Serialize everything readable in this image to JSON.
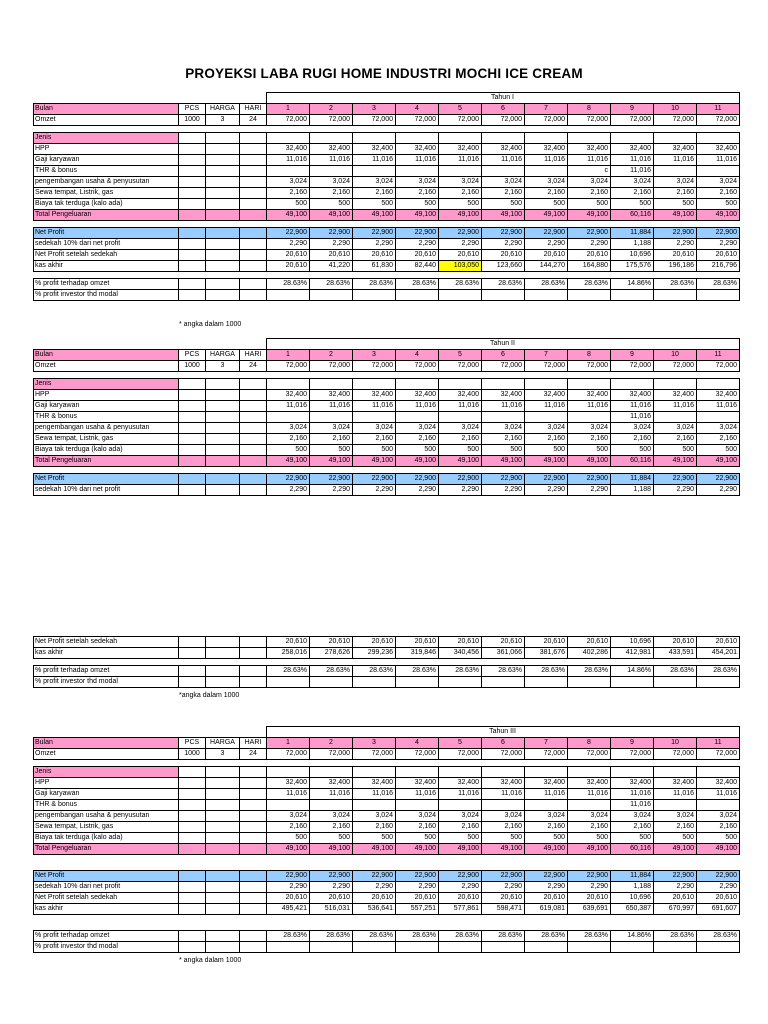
{
  "title": "PROYEKSI LABA RUGI HOME INDUSTRI MOCHI ICE CREAM",
  "colors": {
    "header_pink": "#FF99CC",
    "profit_blue": "#99CCFF",
    "highlight_yellow": "#FFFF00",
    "grid_border": "#000000",
    "page_background": "#FFFFFF"
  },
  "column_headers": {
    "bulan": "Bulan",
    "pcs": "PCS",
    "harga": "HARGA",
    "hari": "HARI"
  },
  "series": {
    "months": [
      "1",
      "2",
      "3",
      "4",
      "5",
      "6",
      "7",
      "8",
      "9",
      "10",
      "11"
    ],
    "omzet": [
      "72,000",
      "72,000",
      "72,000",
      "72,000",
      "72,000",
      "72,000",
      "72,000",
      "72,000",
      "72,000",
      "72,000",
      "72,000"
    ],
    "hpp": [
      "32,400",
      "32,400",
      "32,400",
      "32,400",
      "32,400",
      "32,400",
      "32,400",
      "32,400",
      "32,400",
      "32,400",
      "32,400"
    ],
    "gaji": [
      "11,016",
      "11,016",
      "11,016",
      "11,016",
      "11,016",
      "11,016",
      "11,016",
      "11,016",
      "11,016",
      "11,016",
      "11,016"
    ],
    "thr_y1": [
      "",
      "",
      "",
      "",
      "",
      "",
      "",
      "c",
      "11,016",
      "",
      ""
    ],
    "thr": [
      "",
      "",
      "",
      "",
      "",
      "",
      "",
      "",
      "11,016",
      "",
      ""
    ],
    "pengembangan": [
      "3,024",
      "3,024",
      "3,024",
      "3,024",
      "3,024",
      "3,024",
      "3,024",
      "3,024",
      "3,024",
      "3,024",
      "3,024"
    ],
    "sewa": [
      "2,160",
      "2,160",
      "2,160",
      "2,160",
      "2,160",
      "2,160",
      "2,160",
      "2,160",
      "2,160",
      "2,160",
      "2,160"
    ],
    "biaya": [
      "500",
      "500",
      "500",
      "500",
      "500",
      "500",
      "500",
      "500",
      "500",
      "500",
      "500"
    ],
    "total": [
      "49,100",
      "49,100",
      "49,100",
      "49,100",
      "49,100",
      "49,100",
      "49,100",
      "49,100",
      "60,116",
      "49,100",
      "49,100"
    ],
    "net_profit": [
      "22,900",
      "22,900",
      "22,900",
      "22,900",
      "22,900",
      "22,900",
      "22,900",
      "22,900",
      "11,884",
      "22,900",
      "22,900"
    ],
    "sedekah": [
      "2,290",
      "2,290",
      "2,290",
      "2,290",
      "2,290",
      "2,290",
      "2,290",
      "2,290",
      "1,188",
      "2,290",
      "2,290"
    ],
    "net_after": [
      "20,610",
      "20,610",
      "20,610",
      "20,610",
      "20,610",
      "20,610",
      "20,610",
      "20,610",
      "10,696",
      "20,610",
      "20,610"
    ],
    "kas_y1": [
      "20,610",
      "41,220",
      "61,830",
      "82,440",
      "103,050",
      "123,660",
      "144,270",
      "164,880",
      "175,576",
      "196,186",
      "216,796"
    ],
    "kas_y2": [
      "258,016",
      "278,626",
      "299,236",
      "319,846",
      "340,456",
      "361,066",
      "381,676",
      "402,286",
      "412,981",
      "433,591",
      "454,201"
    ],
    "kas_y3": [
      "495,421",
      "516,031",
      "536,641",
      "557,251",
      "577,861",
      "598,471",
      "619,081",
      "639,691",
      "650,387",
      "670,997",
      "691,607"
    ],
    "pct": [
      "28.63%",
      "28.63%",
      "28.63%",
      "28.63%",
      "28.63%",
      "28.63%",
      "28.63%",
      "28.63%",
      "14.86%",
      "28.63%",
      "28.63%"
    ],
    "empty": [
      "",
      "",
      "",
      "",
      "",
      "",
      "",
      "",
      "",
      "",
      ""
    ]
  },
  "segments": [
    {
      "type": "table",
      "name": "tahun1-header-table",
      "rows": [
        {
          "kind": "year",
          "name": "year-row",
          "text": "Tahun I"
        },
        {
          "kind": "row",
          "name": "bulan-row",
          "label": "Bulan",
          "labelBg": "pink",
          "small": [
            "PCS",
            "HARGA",
            "HARI"
          ],
          "valRef": "months",
          "valBg": "pink",
          "align": "center"
        },
        {
          "kind": "row",
          "name": "omzet-row",
          "label": "Omzet",
          "small": [
            "1000",
            "3",
            "24"
          ],
          "valRef": "omzet"
        }
      ]
    },
    {
      "type": "gap",
      "size": "s"
    },
    {
      "type": "table",
      "name": "tahun1-expenses-table",
      "rows": [
        {
          "kind": "row",
          "name": "jenis-row",
          "label": "Jenis",
          "labelBg": "pink",
          "valRef": "empty"
        },
        {
          "kind": "row",
          "name": "hpp-row",
          "label": "HPP",
          "valRef": "hpp"
        },
        {
          "kind": "row",
          "name": "gaji-row",
          "label": "Gaji karyawan",
          "valRef": "gaji"
        },
        {
          "kind": "row",
          "name": "thr-row",
          "label": "THR & bonus",
          "valRef": "thr_y1"
        },
        {
          "kind": "row",
          "name": "pengembangan-row",
          "label": "pengembangan usaha & penyusutan",
          "valRef": "pengembangan"
        },
        {
          "kind": "row",
          "name": "sewa-row",
          "label": "Sewa tempat, Listrik, gas",
          "valRef": "sewa"
        },
        {
          "kind": "row",
          "name": "biaya-row",
          "label": "Biaya tak terduga (kalo ada)",
          "valRef": "biaya"
        },
        {
          "kind": "row",
          "name": "total-row",
          "label": "Total Pengeluaran",
          "rowBg": "pink",
          "valRef": "total"
        }
      ]
    },
    {
      "type": "gap",
      "size": "s"
    },
    {
      "type": "table",
      "name": "tahun1-profit-table",
      "rows": [
        {
          "kind": "row",
          "name": "net-profit-row",
          "label": "Net Profit",
          "rowBg": "blue",
          "valRef": "net_profit"
        },
        {
          "kind": "row",
          "name": "sedekah-row",
          "label": "sedekah 10% dari net profit",
          "valRef": "sedekah"
        },
        {
          "kind": "row",
          "name": "net-after-row",
          "label": "Net Profit setelah sedekah",
          "valRef": "net_after"
        },
        {
          "kind": "row",
          "name": "kas-akhir-row",
          "label": "kas akhir",
          "valRef": "kas_y1",
          "highlight": 4
        }
      ]
    },
    {
      "type": "gap",
      "size": "s"
    },
    {
      "type": "table",
      "name": "tahun1-percent-table",
      "rows": [
        {
          "kind": "row",
          "name": "pct-omzet-row",
          "label": "% profit terhadap omzet",
          "valRef": "pct"
        },
        {
          "kind": "row",
          "name": "pct-investor-row",
          "label": "% profit investor thd modal",
          "valRef": "empty"
        }
      ]
    },
    {
      "type": "gap",
      "size": "m"
    },
    {
      "type": "note",
      "text": "* angka dalam 1000"
    },
    {
      "type": "gap",
      "size": "b"
    },
    {
      "type": "table",
      "name": "tahun2-header-table",
      "rows": [
        {
          "kind": "year",
          "name": "year-row",
          "text": "Tahun II"
        },
        {
          "kind": "row",
          "name": "bulan-row",
          "label": "Bulan",
          "labelBg": "pink",
          "small": [
            "PCS",
            "HARGA",
            "HARI"
          ],
          "valRef": "months",
          "valBg": "pink",
          "align": "center"
        },
        {
          "kind": "row",
          "name": "omzet-row",
          "label": "Omzet",
          "small": [
            "1000",
            "3",
            "24"
          ],
          "valRef": "omzet"
        }
      ]
    },
    {
      "type": "gap",
      "size": "s"
    },
    {
      "type": "table",
      "name": "tahun2-expenses-table",
      "rows": [
        {
          "kind": "row",
          "name": "jenis-row",
          "label": "Jenis",
          "labelBg": "pink",
          "valRef": "empty"
        },
        {
          "kind": "row",
          "name": "hpp-row",
          "label": "HPP",
          "valRef": "hpp"
        },
        {
          "kind": "row",
          "name": "gaji-row",
          "label": "Gaji karyawan",
          "valRef": "gaji"
        },
        {
          "kind": "row",
          "name": "thr-row",
          "label": "THR & bonus",
          "valRef": "thr"
        },
        {
          "kind": "row",
          "name": "pengembangan-row",
          "label": "pengembangan usaha & penyusutan",
          "valRef": "pengembangan"
        },
        {
          "kind": "row",
          "name": "sewa-row",
          "label": "Sewa tempat, Listrik, gas",
          "valRef": "sewa"
        },
        {
          "kind": "row",
          "name": "biaya-row",
          "label": "Biaya tak terduga (kalo ada)",
          "valRef": "biaya"
        },
        {
          "kind": "row",
          "name": "total-row",
          "label": "Total Pengeluaran",
          "rowBg": "pink",
          "valRef": "total"
        }
      ]
    },
    {
      "type": "gap",
      "size": "s"
    },
    {
      "type": "table",
      "name": "tahun2-profit-table",
      "rows": [
        {
          "kind": "row",
          "name": "net-profit-row",
          "label": "Net Profit",
          "rowBg": "blue",
          "valRef": "net_profit"
        },
        {
          "kind": "row",
          "name": "sedekah-row",
          "label": "sedekah 10% dari net profit",
          "valRef": "sedekah"
        }
      ]
    },
    {
      "type": "gap",
      "size": "l"
    },
    {
      "type": "table",
      "name": "tahun2-profit-continued-table",
      "rows": [
        {
          "kind": "row",
          "name": "net-after-row",
          "label": "Net Profit setelah sedekah",
          "valRef": "net_after"
        },
        {
          "kind": "row",
          "name": "kas-akhir-row",
          "label": "kas akhir",
          "valRef": "kas_y2"
        }
      ]
    },
    {
      "type": "gap",
      "size": "s"
    },
    {
      "type": "table",
      "name": "tahun2-percent-table",
      "rows": [
        {
          "kind": "row",
          "name": "pct-omzet-row",
          "label": "% profit terhadap omzet",
          "valRef": "pct"
        },
        {
          "kind": "row",
          "name": "pct-investor-row",
          "label": "% profit investor thd modal",
          "valRef": "empty"
        }
      ]
    },
    {
      "type": "gap",
      "size": "xs"
    },
    {
      "type": "note",
      "text": "*angka dalam 1000"
    },
    {
      "type": "gap",
      "size": "xl"
    },
    {
      "type": "table",
      "name": "tahun3-header-table",
      "rows": [
        {
          "kind": "year",
          "name": "year-row",
          "text": "Tahun III"
        },
        {
          "kind": "row",
          "name": "bulan-row",
          "label": "Bulan",
          "labelBg": "pink",
          "small": [
            "PCS",
            "HARGA",
            "HARI"
          ],
          "valRef": "months",
          "valBg": "pink",
          "align": "center"
        },
        {
          "kind": "row",
          "name": "omzet-row",
          "label": "Omzet",
          "small": [
            "1000",
            "3",
            "24"
          ],
          "valRef": "omzet"
        }
      ]
    },
    {
      "type": "gap",
      "size": "s"
    },
    {
      "type": "table",
      "name": "tahun3-expenses-table",
      "rows": [
        {
          "kind": "row",
          "name": "jenis-row",
          "label": "Jenis",
          "labelBg": "pink",
          "valRef": "empty"
        },
        {
          "kind": "row",
          "name": "hpp-row",
          "label": "HPP",
          "valRef": "hpp"
        },
        {
          "kind": "row",
          "name": "gaji-row",
          "label": "Gaji karyawan",
          "valRef": "gaji"
        },
        {
          "kind": "row",
          "name": "thr-row",
          "label": "THR & bonus",
          "valRef": "thr"
        },
        {
          "kind": "row",
          "name": "pengembangan-row",
          "label": "pengembangan usaha & penyusutan",
          "valRef": "pengembangan"
        },
        {
          "kind": "row",
          "name": "sewa-row",
          "label": "Sewa tempat, Listrik, gas",
          "valRef": "sewa"
        },
        {
          "kind": "row",
          "name": "biaya-row",
          "label": "Biaya tak terduga (kalo ada)",
          "valRef": "biaya"
        },
        {
          "kind": "row",
          "name": "total-row",
          "label": "Total Pengeluaran",
          "rowBg": "pink",
          "valRef": "total"
        }
      ]
    },
    {
      "type": "gap",
      "size": "m2"
    },
    {
      "type": "table",
      "name": "tahun3-profit-table",
      "rows": [
        {
          "kind": "row",
          "name": "net-profit-row",
          "label": "Net Profit",
          "rowBg": "blue",
          "valRef": "net_profit"
        },
        {
          "kind": "row",
          "name": "sedekah-row",
          "label": "sedekah 10% dari net profit",
          "valRef": "sedekah"
        },
        {
          "kind": "row",
          "name": "net-after-row",
          "label": "Net Profit setelah sedekah",
          "valRef": "net_after"
        },
        {
          "kind": "row",
          "name": "kas-akhir-row",
          "label": "kas akhir",
          "valRef": "kas_y3"
        }
      ]
    },
    {
      "type": "gap",
      "size": "m2"
    },
    {
      "type": "table",
      "name": "tahun3-percent-table",
      "rows": [
        {
          "kind": "row",
          "name": "pct-omzet-row",
          "label": "% profit terhadap omzet",
          "valRef": "pct"
        },
        {
          "kind": "row",
          "name": "pct-investor-row",
          "label": "% profit investor thd modal",
          "valRef": "empty"
        }
      ]
    },
    {
      "type": "gap",
      "size": "xs"
    },
    {
      "type": "note",
      "text": "* angka dalam 1000"
    }
  ]
}
